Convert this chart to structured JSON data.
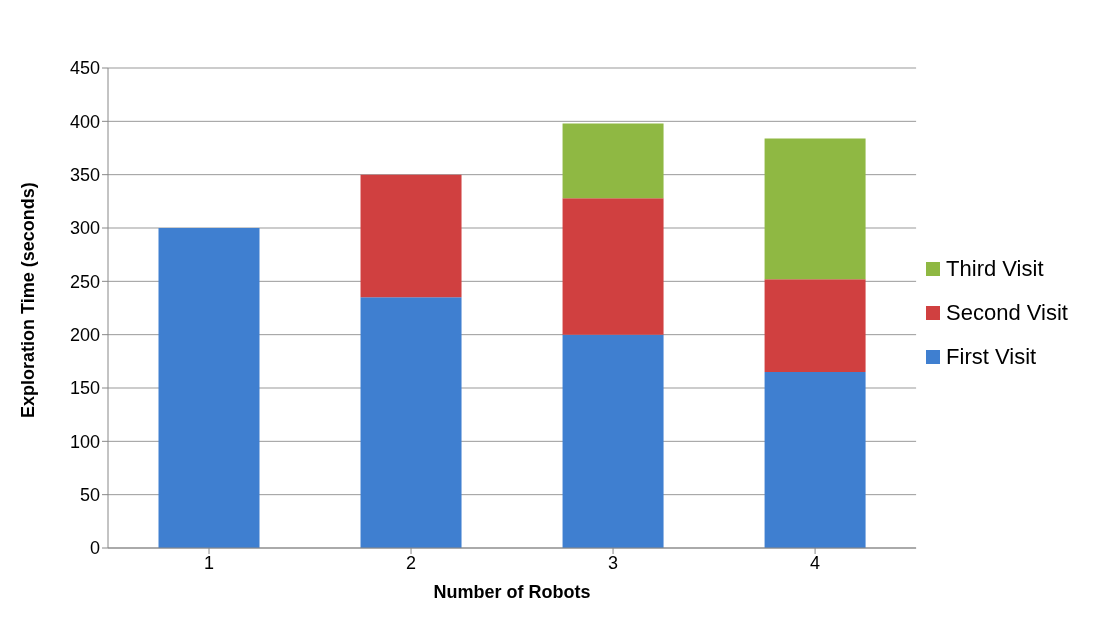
{
  "chart_data": {
    "type": "bar",
    "stacked": true,
    "xlabel": "Number of Robots",
    "ylabel": "Exploration Time (seconds)",
    "categories": [
      "1",
      "2",
      "3",
      "4"
    ],
    "series": [
      {
        "name": "First Visit",
        "color": "#3f7fd0",
        "values": [
          300,
          235,
          200,
          165
        ]
      },
      {
        "name": "Second Visit",
        "color": "#d04040",
        "values": [
          null,
          115,
          128,
          87
        ]
      },
      {
        "name": "Third Visit",
        "color": "#8fb843",
        "values": [
          null,
          null,
          70,
          132
        ]
      }
    ],
    "ylim": [
      0,
      450
    ],
    "yticks": [
      0,
      50,
      100,
      150,
      200,
      250,
      300,
      350,
      400,
      450
    ],
    "grid": "y",
    "legend": "right"
  }
}
